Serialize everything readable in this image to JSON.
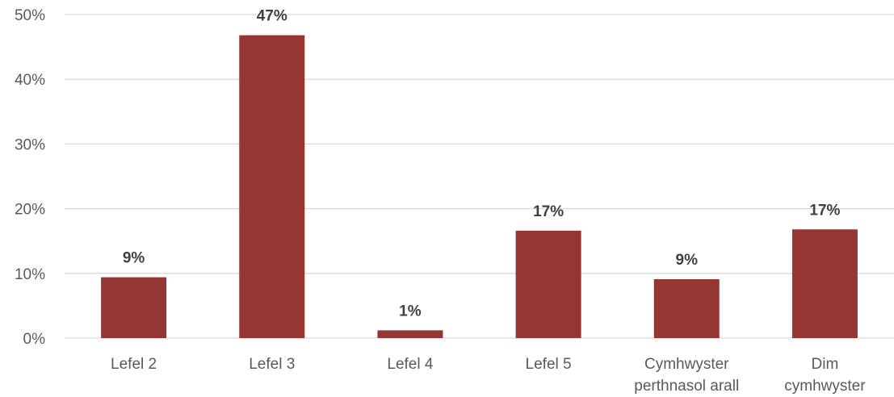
{
  "chart_data": {
    "type": "bar",
    "categories": [
      [
        "Lefel 2"
      ],
      [
        "Lefel 3"
      ],
      [
        "Lefel 4"
      ],
      [
        "Lefel 5"
      ],
      [
        "Cymhwyster",
        "perthnasol arall"
      ],
      [
        "Dim",
        "cymhwyster"
      ]
    ],
    "values": [
      9.4,
      46.8,
      1.2,
      16.6,
      9.1,
      16.8
    ],
    "data_labels": [
      "9%",
      "47%",
      "1%",
      "17%",
      "9%",
      "17%"
    ],
    "y_ticks": [
      0,
      10,
      20,
      30,
      40,
      50
    ],
    "y_tick_labels": [
      "0%",
      "10%",
      "20%",
      "30%",
      "40%",
      "50%"
    ],
    "ylim": [
      0,
      50
    ],
    "title": "",
    "xlabel": "",
    "ylabel": "",
    "grid": true,
    "legend": "none",
    "bar_color": "#943634"
  }
}
